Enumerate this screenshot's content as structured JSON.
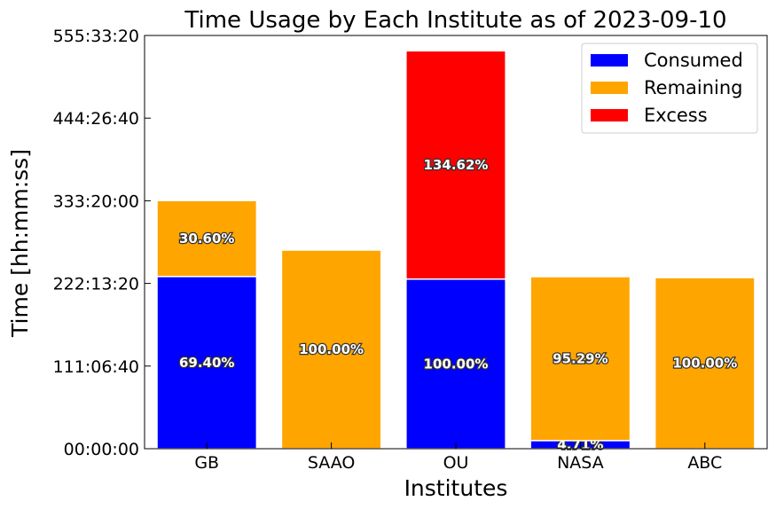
{
  "chart_data": {
    "type": "bar",
    "stacked": true,
    "title": "Time Usage by Each Institute as of 2023-09-10",
    "xlabel": "Institutes",
    "ylabel": "Time [hh:mm:ss]",
    "categories": [
      "GB",
      "SAAO",
      "OU",
      "NASA",
      "ABC"
    ],
    "ylim_hours": [
      0,
      555.5556
    ],
    "y_ticks": [
      {
        "hours": 0,
        "label": "00:00:00"
      },
      {
        "hours": 111.1111,
        "label": "111:06:40"
      },
      {
        "hours": 222.2222,
        "label": "222:13:20"
      },
      {
        "hours": 333.3333,
        "label": "333:20:00"
      },
      {
        "hours": 444.4444,
        "label": "444:26:40"
      },
      {
        "hours": 555.5556,
        "label": "555:33:20"
      }
    ],
    "grid": false,
    "legend_position": "top-right",
    "series": [
      {
        "name": "Consumed",
        "color": "#0000ff",
        "values_hours": [
          231.5,
          0,
          228,
          10.9,
          0
        ],
        "labels": [
          "69.40%",
          "",
          "100.00%",
          "4.71%",
          ""
        ]
      },
      {
        "name": "Remaining",
        "color": "#ffa500",
        "values_hours": [
          102.1,
          267,
          0,
          220.4,
          230
        ],
        "labels": [
          "30.60%",
          "100.00%",
          "",
          "95.29%",
          "100.00%"
        ]
      },
      {
        "name": "Excess",
        "color": "#ff0000",
        "values_hours": [
          0,
          0,
          306.9,
          0,
          0
        ],
        "labels": [
          "",
          "",
          "134.62%",
          "",
          ""
        ]
      }
    ]
  }
}
